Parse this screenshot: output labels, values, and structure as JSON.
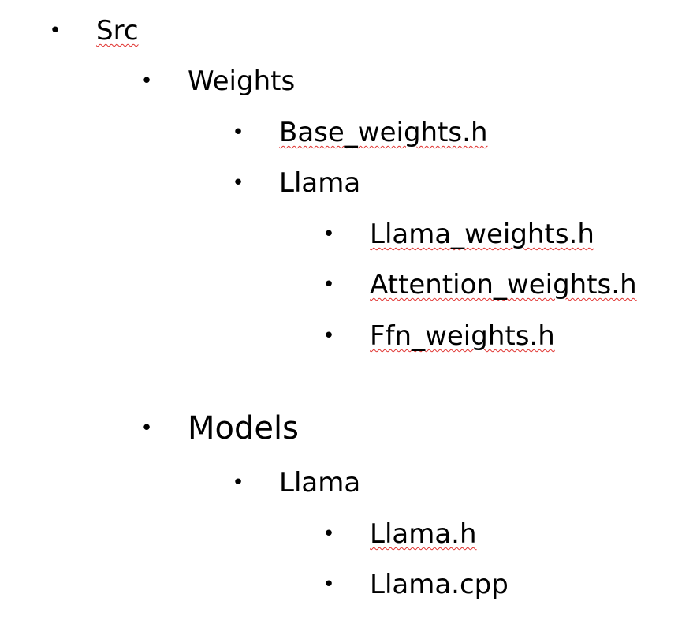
{
  "bullet_glyph": "•",
  "spellcheck_color": "#e0322f",
  "outline": {
    "src": "Src",
    "weights": "Weights",
    "base_weights": "Base_weights.h",
    "weights_llama": "Llama",
    "llama_weights": "Llama_weights.h",
    "attention_weights": "Attention_weights.h",
    "ffn_weights": "Ffn_weights.h",
    "models": "Models",
    "models_llama": "Llama",
    "llama_h": "Llama.h",
    "llama_cpp": "Llama.cpp"
  }
}
